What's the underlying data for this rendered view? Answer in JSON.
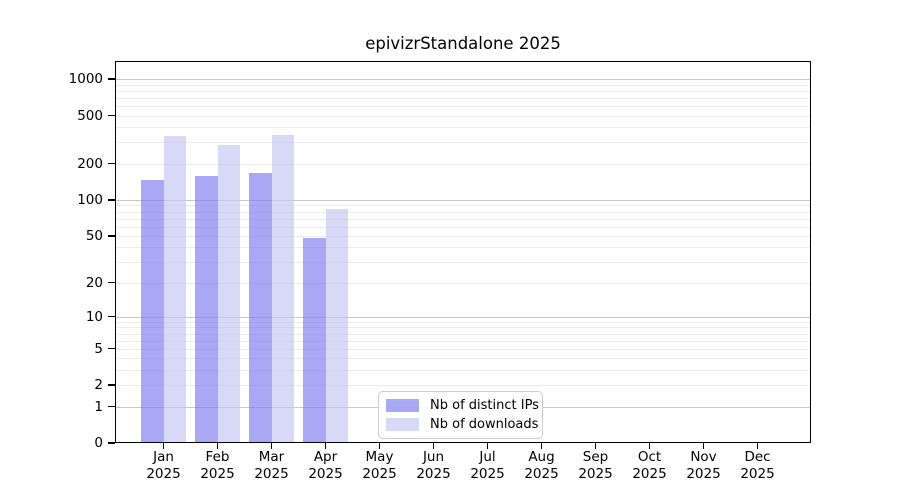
{
  "chart_data": {
    "type": "bar",
    "title": "epivizrStandalone 2025",
    "categories": [
      "Jan",
      "Feb",
      "Mar",
      "Apr",
      "May",
      "Jun",
      "Jul",
      "Aug",
      "Sep",
      "Oct",
      "Nov",
      "Dec"
    ],
    "year": "2025",
    "series": [
      {
        "name": "Nb of distinct IPs",
        "color": "rgba(121,121,238,0.65)",
        "values": [
          146,
          159,
          166,
          48,
          null,
          null,
          null,
          null,
          null,
          null,
          null,
          null
        ]
      },
      {
        "name": "Nb of downloads",
        "color": "rgba(195,195,243,0.65)",
        "values": [
          340,
          283,
          347,
          84,
          null,
          null,
          null,
          null,
          null,
          null,
          null,
          null
        ]
      }
    ],
    "y_axis": {
      "scale": "log10(value+1)",
      "ticks": [
        0,
        1,
        2,
        5,
        10,
        20,
        50,
        100,
        200,
        500,
        1000
      ],
      "major_gridlines": [
        1,
        10,
        100,
        1000
      ],
      "ylim": [
        0,
        1410
      ]
    },
    "legend": {
      "entries": [
        "Nb of distinct IPs",
        "Nb of downloads"
      ],
      "position": "bottom-center"
    },
    "grid": "horizontal",
    "colors": {
      "major_grid": "#c8c8c8",
      "minor_grid": "#ececec",
      "axis": "#000000",
      "background": "#ffffff"
    }
  }
}
